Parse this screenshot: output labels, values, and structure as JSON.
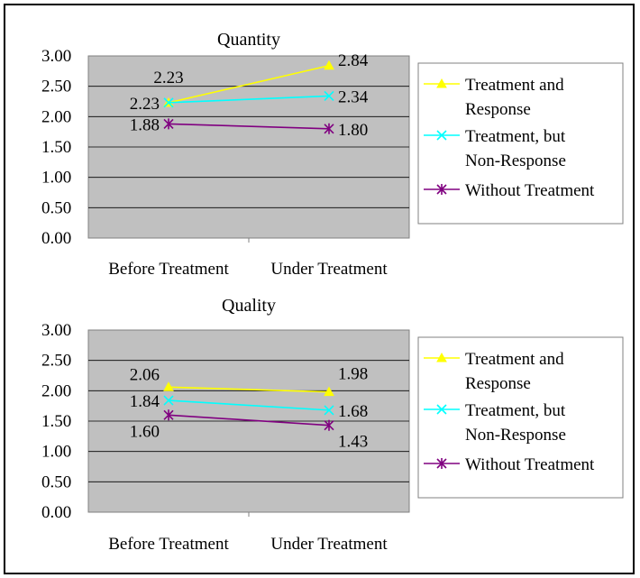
{
  "chart_data": [
    {
      "type": "line",
      "title": "Quantity",
      "categories": [
        "Before Treatment",
        "Under Treatment"
      ],
      "ylim": [
        0,
        3
      ],
      "yticks": [
        "0.00",
        "0.50",
        "1.00",
        "1.50",
        "2.00",
        "2.50",
        "3.00"
      ],
      "grid": true,
      "legend_position": "right",
      "series": [
        {
          "name": "Treatment and Response",
          "name_lines": [
            "Treatment and",
            "Response"
          ],
          "values": [
            2.23,
            2.84
          ],
          "labels": [
            "2.23",
            "2.84"
          ],
          "color": "#ffff00",
          "marker": "triangle"
        },
        {
          "name": "Treatment, but Non-Response",
          "name_lines": [
            "Treatment, but",
            "Non-Response"
          ],
          "values": [
            2.23,
            2.34
          ],
          "labels": [
            "2.23",
            "2.34"
          ],
          "color": "#00ffff",
          "marker": "x"
        },
        {
          "name": "Without Treatment",
          "name_lines": [
            "Without Treatment"
          ],
          "values": [
            1.88,
            1.8
          ],
          "labels": [
            "1.88",
            "1.80"
          ],
          "color": "#800080",
          "marker": "star"
        }
      ]
    },
    {
      "type": "line",
      "title": "Quality",
      "categories": [
        "Before Treatment",
        "Under Treatment"
      ],
      "ylim": [
        0,
        3
      ],
      "yticks": [
        "0.00",
        "0.50",
        "1.00",
        "1.50",
        "2.00",
        "2.50",
        "3.00"
      ],
      "grid": true,
      "legend_position": "right",
      "series": [
        {
          "name": "Treatment and Response",
          "name_lines": [
            "Treatment and",
            "Response"
          ],
          "values": [
            2.06,
            1.98
          ],
          "labels": [
            "2.06",
            "1.98"
          ],
          "color": "#ffff00",
          "marker": "triangle"
        },
        {
          "name": "Treatment, but Non-Response",
          "name_lines": [
            "Treatment, but",
            "Non-Response"
          ],
          "values": [
            1.84,
            1.68
          ],
          "labels": [
            "1.84",
            "1.68"
          ],
          "color": "#00ffff",
          "marker": "x"
        },
        {
          "name": "Without Treatment",
          "name_lines": [
            "Without Treatment"
          ],
          "values": [
            1.6,
            1.43
          ],
          "labels": [
            "1.60",
            "1.43"
          ],
          "color": "#800080",
          "marker": "star"
        }
      ]
    }
  ]
}
